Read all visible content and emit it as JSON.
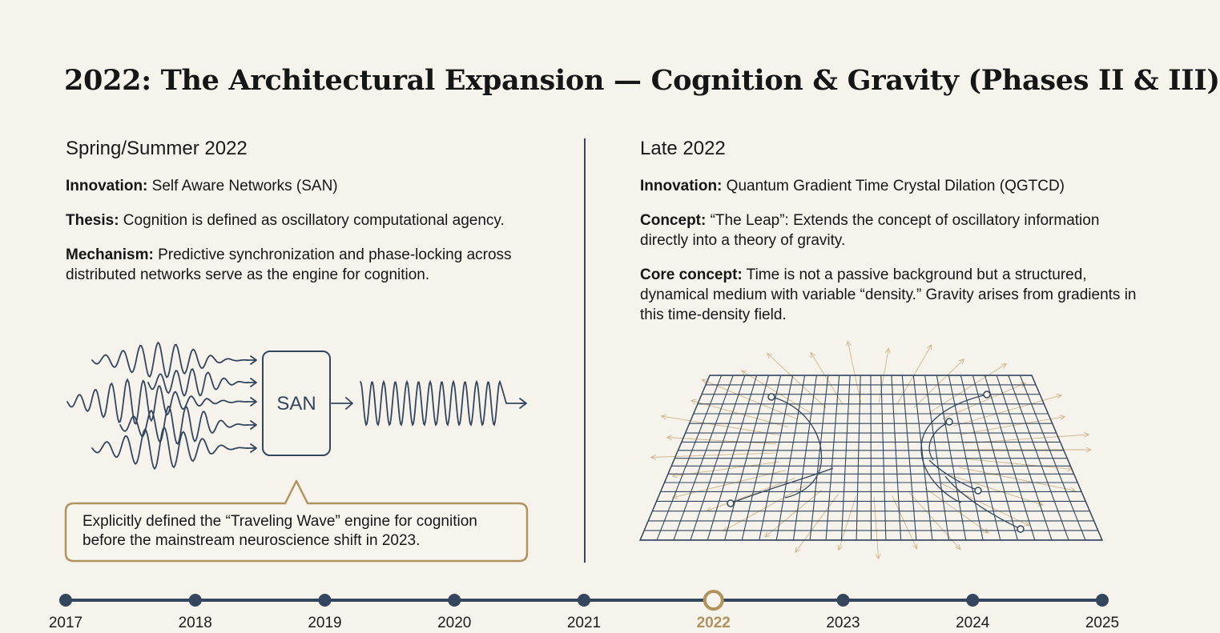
{
  "title": "2022: The Architectural Expansion — Cognition & Gravity (Phases II & III)",
  "left": {
    "heading": "Spring/Summer 2022",
    "innovation_label": "Innovation:",
    "innovation_text": " Self Aware Networks (SAN)",
    "thesis_label": "Thesis:",
    "thesis_text": " Cognition is defined as oscillatory computational agency.",
    "mechanism_label": "Mechanism:",
    "mechanism_text": " Predictive synchronization and phase-locking across distributed networks serve as the engine for cognition.",
    "diagram_box_label": "SAN",
    "callout": "Explicitly defined the “Traveling Wave” engine for cognition before the mainstream neuroscience shift in 2023."
  },
  "right": {
    "heading": "Late 2022",
    "innovation_label": "Innovation:",
    "innovation_text": " Quantum Gradient Time Crystal Dilation (QGTCD)",
    "concept_label": "Concept:",
    "concept_text": " “The Leap”: Extends the concept of oscillatory information directly into a theory of gravity.",
    "core_label": "Core concept:",
    "core_text": " Time is not a passive background but a structured, dynamical medium with variable “density.” Gravity arises from gradients in this time-density field."
  },
  "timeline": {
    "years": [
      "2017",
      "2018",
      "2019",
      "2020",
      "2021",
      "2022",
      "2023",
      "2024",
      "2025"
    ],
    "active": "2022"
  },
  "colors": {
    "navy": "#33465e",
    "gold": "#b0935f",
    "background": "#f6f3ec"
  }
}
